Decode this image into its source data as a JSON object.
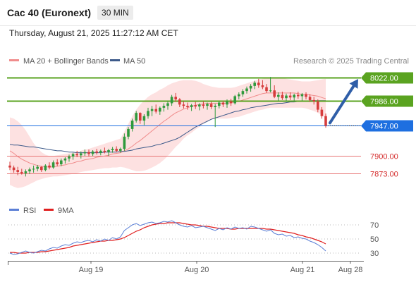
{
  "header": {
    "title": "Cac 40 (Euronext)",
    "interval": "30 MIN",
    "timestamp": "Thursday, August 21, 2025 11:27:12 AM CET",
    "credit": "Research © 2025 Trading Central"
  },
  "colors": {
    "bollinger_fill": "#fde1e1",
    "ma20": "#f08c8c",
    "ma50": "#3d5a8a",
    "up": "#2f9a3c",
    "down": "#d63c3c",
    "resistance": "#5aa320",
    "pivot": "#1e6fe0",
    "support": "#e87474",
    "rsi": "#5b7fd6",
    "rsi_ma": "#e01f1f"
  },
  "chart_data": [
    {
      "type": "candlestick",
      "legend": [
        {
          "name": "MA 20 + Bollinger Bands",
          "color": "#f08c8c"
        },
        {
          "name": "MA 50",
          "color": "#3d5a8a"
        }
      ],
      "x_tick_labels": [
        "Aug 19",
        "Aug 20",
        "Aug 21",
        "Aug 28"
      ],
      "ylim": [
        7853,
        8033
      ],
      "levels": [
        {
          "value": 8022.0,
          "label": "8022.00",
          "kind": "resistance"
        },
        {
          "value": 7986.0,
          "label": "7986.00",
          "kind": "resistance"
        },
        {
          "value": 7947.0,
          "label": "7947.00",
          "kind": "pivot"
        },
        {
          "value": 7900.0,
          "label": "7900.00",
          "kind": "support"
        },
        {
          "value": 7873.0,
          "label": "7873.00",
          "kind": "support"
        }
      ],
      "ohlc": [
        [
          7885,
          7891,
          7878,
          7882
        ],
        [
          7882,
          7885,
          7874,
          7878
        ],
        [
          7878,
          7883,
          7870,
          7875
        ],
        [
          7875,
          7880,
          7871,
          7873
        ],
        [
          7873,
          7879,
          7868,
          7876
        ],
        [
          7876,
          7882,
          7872,
          7879
        ],
        [
          7879,
          7885,
          7874,
          7880
        ],
        [
          7880,
          7886,
          7876,
          7883
        ],
        [
          7883,
          7884,
          7875,
          7878
        ],
        [
          7878,
          7887,
          7876,
          7885
        ],
        [
          7885,
          7890,
          7879,
          7882
        ],
        [
          7882,
          7893,
          7880,
          7890
        ],
        [
          7890,
          7895,
          7884,
          7887
        ],
        [
          7887,
          7896,
          7884,
          7893
        ],
        [
          7893,
          7898,
          7888,
          7896
        ],
        [
          7896,
          7902,
          7891,
          7899
        ],
        [
          7899,
          7905,
          7894,
          7903
        ],
        [
          7903,
          7908,
          7898,
          7901
        ],
        [
          7901,
          7907,
          7896,
          7904
        ],
        [
          7904,
          7910,
          7900,
          7906
        ],
        [
          7906,
          7910,
          7899,
          7903
        ],
        [
          7903,
          7909,
          7900,
          7907
        ],
        [
          7907,
          7911,
          7902,
          7905
        ],
        [
          7905,
          7910,
          7901,
          7908
        ],
        [
          7908,
          7913,
          7904,
          7906
        ],
        [
          7906,
          7911,
          7900,
          7909
        ],
        [
          7909,
          7914,
          7905,
          7911
        ],
        [
          7911,
          7915,
          7906,
          7908
        ],
        [
          7908,
          7913,
          7905,
          7911
        ],
        [
          7911,
          7935,
          7908,
          7930
        ],
        [
          7930,
          7945,
          7926,
          7942
        ],
        [
          7942,
          7958,
          7938,
          7955
        ],
        [
          7955,
          7970,
          7952,
          7967
        ],
        [
          7967,
          7968,
          7950,
          7955
        ],
        [
          7955,
          7965,
          7948,
          7962
        ],
        [
          7962,
          7975,
          7958,
          7970
        ],
        [
          7970,
          7978,
          7962,
          7973
        ],
        [
          7973,
          7980,
          7966,
          7969
        ],
        [
          7969,
          7977,
          7964,
          7975
        ],
        [
          7975,
          7982,
          7969,
          7978
        ],
        [
          7978,
          7985,
          7972,
          7982
        ],
        [
          7982,
          7995,
          7978,
          7992
        ],
        [
          7992,
          7998,
          7984,
          7988
        ],
        [
          7988,
          7990,
          7976,
          7980
        ],
        [
          7980,
          7985,
          7974,
          7978
        ],
        [
          7978,
          7983,
          7972,
          7976
        ],
        [
          7976,
          7981,
          7970,
          7979
        ],
        [
          7979,
          7984,
          7973,
          7977
        ],
        [
          7977,
          7982,
          7971,
          7980
        ],
        [
          7980,
          7985,
          7974,
          7978
        ],
        [
          7978,
          7983,
          7972,
          7981
        ],
        [
          7981,
          7984,
          7973,
          7976
        ],
        [
          7976,
          7981,
          7945,
          7978
        ],
        [
          7978,
          7985,
          7974,
          7983
        ],
        [
          7983,
          7986,
          7976,
          7980
        ],
        [
          7980,
          7988,
          7975,
          7985
        ],
        [
          7985,
          7989,
          7978,
          7982
        ],
        [
          7982,
          7995,
          7980,
          7993
        ],
        [
          7993,
          7999,
          7988,
          7996
        ],
        [
          7996,
          8004,
          7992,
          8001
        ],
        [
          8001,
          8008,
          7997,
          8005
        ],
        [
          8005,
          8012,
          8000,
          8009
        ],
        [
          8009,
          8017,
          8004,
          8014
        ],
        [
          8014,
          8020,
          8006,
          8010
        ],
        [
          8010,
          8018,
          8004,
          8007
        ],
        [
          8007,
          8012,
          7998,
          8001
        ],
        [
          8001,
          8023,
          7999,
          8002
        ],
        [
          8002,
          8010,
          7990,
          7992
        ],
        [
          7992,
          7999,
          7986,
          7995
        ],
        [
          7995,
          8000,
          7987,
          7990
        ],
        [
          7990,
          7997,
          7985,
          7994
        ],
        [
          7994,
          7999,
          7987,
          7991
        ],
        [
          7991,
          7997,
          7986,
          7995
        ],
        [
          7995,
          8000,
          7989,
          7993
        ],
        [
          7993,
          7998,
          7986,
          7996
        ],
        [
          7996,
          7999,
          7988,
          7992
        ],
        [
          7992,
          7996,
          7984,
          7987
        ],
        [
          7987,
          7992,
          7980,
          7985
        ],
        [
          7985,
          7988,
          7968,
          7972
        ],
        [
          7972,
          7976,
          7958,
          7962
        ],
        [
          7962,
          7966,
          7944,
          7947
        ]
      ],
      "ma20": [
        7908,
        7904,
        7899,
        7895,
        7892,
        7889,
        7887,
        7885,
        7884,
        7883,
        7883,
        7883,
        7884,
        7885,
        7886,
        7888,
        7889,
        7891,
        7892,
        7894,
        7895,
        7896,
        7898,
        7899,
        7900,
        7901,
        7903,
        7904,
        7905,
        7908,
        7911,
        7915,
        7920,
        7924,
        7929,
        7934,
        7939,
        7944,
        7949,
        7954,
        7958,
        7963,
        7967,
        7970,
        7973,
        7975,
        7977,
        7979,
        7980,
        7981,
        7982,
        7982,
        7982,
        7982,
        7982,
        7982,
        7983,
        7984,
        7985,
        7987,
        7989,
        7991,
        7993,
        7995,
        7997,
        7998,
        7998,
        7998,
        7998,
        7998,
        7998,
        7998,
        7998,
        7997,
        7996,
        7996,
        7995,
        7994,
        7993,
        7991,
        7989
      ],
      "bb_upper": [
        7960,
        7958,
        7954,
        7948,
        7940,
        7930,
        7920,
        7912,
        7906,
        7902,
        7900,
        7900,
        7901,
        7902,
        7903,
        7904,
        7905,
        7907,
        7908,
        7910,
        7911,
        7913,
        7915,
        7917,
        7919,
        7921,
        7923,
        7925,
        7927,
        7938,
        7950,
        7962,
        7972,
        7980,
        7986,
        7992,
        7996,
        7999,
        8003,
        8006,
        8010,
        8013,
        8015,
        8017,
        8018,
        8018,
        8018,
        8017,
        8015,
        8012,
        8010,
        8008,
        8007,
        8006,
        8006,
        8006,
        8006,
        8007,
        8009,
        8011,
        8013,
        8015,
        8017,
        8019,
        8020,
        8021,
        8021,
        8021,
        8021,
        8021,
        8020,
        8019,
        8018,
        8017,
        8016,
        8016,
        8016,
        8017,
        8018,
        8019,
        8020
      ],
      "bb_lower": [
        7855,
        7852,
        7850,
        7851,
        7853,
        7856,
        7859,
        7862,
        7864,
        7866,
        7867,
        7868,
        7868,
        7869,
        7870,
        7871,
        7872,
        7873,
        7875,
        7876,
        7877,
        7878,
        7879,
        7880,
        7881,
        7881,
        7882,
        7882,
        7883,
        7882,
        7880,
        7878,
        7876,
        7876,
        7877,
        7879,
        7882,
        7885,
        7889,
        7894,
        7900,
        7907,
        7914,
        7920,
        7927,
        7932,
        7936,
        7941,
        7945,
        7950,
        7954,
        7957,
        7958,
        7958,
        7958,
        7958,
        7959,
        7960,
        7961,
        7963,
        7965,
        7967,
        7969,
        7971,
        7972,
        7974,
        7975,
        7975,
        7975,
        7975,
        7975,
        7975,
        7975,
        7975,
        7975,
        7974,
        7972,
        7970,
        7967,
        7964,
        7958
      ],
      "ma50": [
        7918,
        7917,
        7917,
        7916,
        7915,
        7914,
        7914,
        7913,
        7912,
        7911,
        7910,
        7909,
        7908,
        7908,
        7907,
        7906,
        7906,
        7905,
        7905,
        7905,
        7905,
        7905,
        7905,
        7905,
        7906,
        7906,
        7906,
        7906,
        7907,
        7907,
        7908,
        7909,
        7911,
        7912,
        7913,
        7914,
        7915,
        7917,
        7918,
        7920,
        7922,
        7924,
        7926,
        7929,
        7933,
        7937,
        7941,
        7945,
        7948,
        7951,
        7954,
        7957,
        7959,
        7961,
        7963,
        7965,
        7967,
        7969,
        7970,
        7972,
        7973,
        7975,
        7976,
        7977,
        7978,
        7979,
        7980,
        7981,
        7982,
        7982,
        7983,
        7984,
        7984,
        7985,
        7985,
        7985,
        7986,
        7986,
        7986,
        7986,
        7986
      ]
    },
    {
      "type": "line",
      "legend": [
        {
          "name": "RSI",
          "color": "#5b7fd6"
        },
        {
          "name": "9MA",
          "color": "#e01f1f"
        }
      ],
      "ylim": [
        25,
        80
      ],
      "y_ticks": [
        30,
        50,
        70
      ],
      "rsi": [
        30,
        28,
        29,
        31,
        33,
        31,
        30,
        32,
        34,
        33,
        36,
        38,
        37,
        40,
        42,
        41,
        44,
        46,
        45,
        47,
        48,
        46,
        49,
        47,
        50,
        48,
        52,
        50,
        53,
        62,
        66,
        70,
        72,
        69,
        71,
        73,
        74,
        72,
        73,
        75,
        74,
        76,
        73,
        70,
        68,
        67,
        69,
        66,
        67,
        68,
        66,
        64,
        62,
        65,
        63,
        66,
        64,
        67,
        65,
        66,
        64,
        68,
        67,
        65,
        63,
        61,
        63,
        58,
        56,
        57,
        54,
        55,
        52,
        53,
        51,
        50,
        47,
        45,
        42,
        38,
        33
      ],
      "rsi_ma": [
        31,
        31,
        30,
        30,
        30,
        31,
        31,
        31,
        32,
        32,
        33,
        34,
        35,
        36,
        37,
        38,
        40,
        41,
        42,
        43,
        44,
        45,
        46,
        47,
        47,
        48,
        48,
        49,
        50,
        52,
        55,
        58,
        61,
        63,
        66,
        68,
        70,
        71,
        72,
        72,
        73,
        73,
        73,
        73,
        72,
        71,
        70,
        70,
        69,
        68,
        68,
        67,
        66,
        65,
        65,
        65,
        64,
        64,
        65,
        65,
        65,
        65,
        65,
        65,
        65,
        64,
        64,
        63,
        62,
        61,
        60,
        59,
        58,
        56,
        55,
        53,
        52,
        50,
        48,
        46,
        43
      ]
    }
  ]
}
